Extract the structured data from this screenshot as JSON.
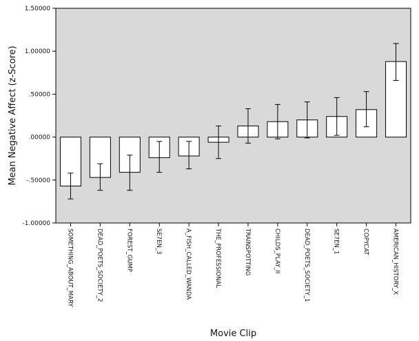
{
  "chart_data": {
    "type": "bar",
    "xlabel": "Movie Clip",
    "ylabel": "Mean Negative Affect (z-Score)",
    "ylim": [
      -1.0,
      1.5
    ],
    "yticks": [
      -1.0,
      -0.5,
      0.0,
      0.5,
      1.0,
      1.5
    ],
    "ytick_labels": [
      "-1.00000",
      "-.50000",
      ".00000",
      ".50000",
      "1.00000",
      "1.50000"
    ],
    "grid": false,
    "error_bars": true,
    "plot_background": "#d9d9d9",
    "bar_fill": "#ffffff",
    "categories": [
      "SOMETHING_ABOUT_MARY",
      "DEAD_POETS_SOCIETY_2",
      "FOREST_GUMP",
      "SE7EN_3",
      "A_FISH_CALLED_WANDA",
      "THE_PROFESSIONAL",
      "TRAINSPOTTING",
      "CHILDS_PLAY_II",
      "DEAD_POETS_SOCIETY_1",
      "SE7EN_1",
      "COPYCAT",
      "AMERICAN_HISTORY_X"
    ],
    "values": [
      -0.57,
      -0.47,
      -0.41,
      -0.24,
      -0.22,
      -0.06,
      0.13,
      0.18,
      0.2,
      0.24,
      0.32,
      0.88
    ],
    "error_low": [
      -0.72,
      -0.62,
      -0.62,
      -0.41,
      -0.37,
      -0.25,
      -0.07,
      -0.02,
      -0.01,
      0.02,
      0.12,
      0.66
    ],
    "error_high": [
      -0.42,
      -0.31,
      -0.21,
      -0.05,
      -0.05,
      0.13,
      0.33,
      0.38,
      0.41,
      0.46,
      0.53,
      1.09
    ]
  }
}
